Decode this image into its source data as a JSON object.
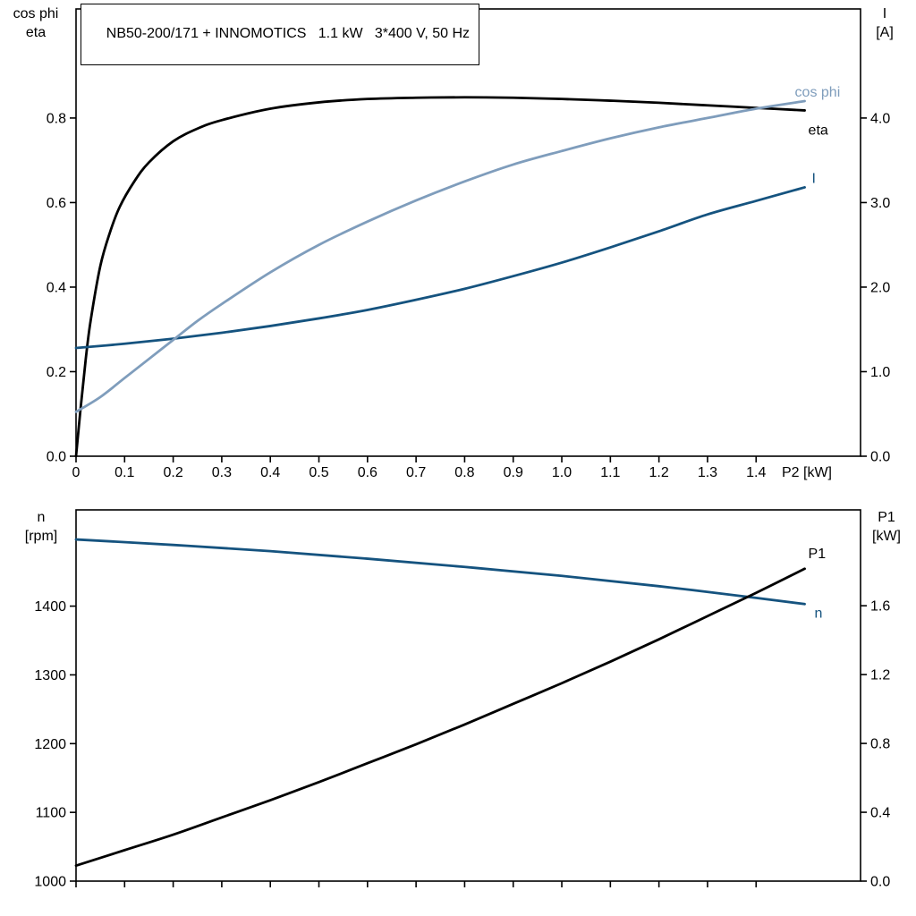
{
  "header": {
    "title_box": "NB50-200/171 + INNOMOTICS   1.1 kW   3*400 V, 50 Hz"
  },
  "colors": {
    "frame": "#000000",
    "background": "#ffffff",
    "eta": "#000000",
    "cos_phi": "#7f9dbc",
    "current": "#15537f",
    "speed": "#15537f",
    "p1": "#000000"
  },
  "chart_data": [
    {
      "name": "motor-performance",
      "type": "line",
      "x_axis": {
        "label": "P2 [kW]",
        "range": [
          0,
          1.615
        ],
        "ticks": [
          0,
          0.1,
          0.2,
          0.3,
          0.4,
          0.5,
          0.6,
          0.7,
          0.8,
          0.9,
          1.0,
          1.1,
          1.2,
          1.3,
          1.4
        ],
        "tick_labels": [
          "0",
          "0.1",
          "0.2",
          "0.3",
          "0.4",
          "0.5",
          "0.6",
          "0.7",
          "0.8",
          "0.9",
          "1.0",
          "1.1",
          "1.2",
          "1.3",
          "1.4"
        ],
        "show_tick_labels": true
      },
      "left_axis": {
        "title_lines": [
          "cos phi",
          "eta"
        ],
        "range": [
          0,
          1.058
        ],
        "ticks": [
          0,
          0.2,
          0.4,
          0.6,
          0.8
        ],
        "tick_labels": [
          "0.0",
          "0.2",
          "0.4",
          "0.6",
          "0.8"
        ]
      },
      "right_axis": {
        "title_lines": [
          "I",
          "[A]"
        ],
        "range": [
          0,
          5.29
        ],
        "ticks": [
          0,
          1,
          2,
          3,
          4
        ],
        "tick_labels": [
          "0.0",
          "1.0",
          "2.0",
          "3.0",
          "4.0"
        ]
      },
      "series": [
        {
          "name": "eta",
          "label": "eta",
          "axis": "left",
          "color": "#000000",
          "x": [
            0,
            0.01,
            0.02,
            0.03,
            0.05,
            0.07,
            0.09,
            0.12,
            0.15,
            0.2,
            0.25,
            0.3,
            0.4,
            0.5,
            0.6,
            0.7,
            0.8,
            0.9,
            1.0,
            1.1,
            1.2,
            1.3,
            1.4,
            1.5
          ],
          "y": [
            0,
            0.12,
            0.23,
            0.32,
            0.45,
            0.53,
            0.59,
            0.65,
            0.695,
            0.745,
            0.775,
            0.795,
            0.822,
            0.837,
            0.845,
            0.848,
            0.849,
            0.848,
            0.845,
            0.841,
            0.836,
            0.83,
            0.824,
            0.818
          ]
        },
        {
          "name": "current",
          "label": "I",
          "axis": "right",
          "color": "#15537f",
          "x": [
            0,
            0.1,
            0.2,
            0.3,
            0.4,
            0.5,
            0.6,
            0.7,
            0.8,
            0.9,
            1.0,
            1.1,
            1.2,
            1.3,
            1.4,
            1.5
          ],
          "y": [
            1.28,
            1.33,
            1.39,
            1.46,
            1.54,
            1.63,
            1.73,
            1.85,
            1.98,
            2.13,
            2.29,
            2.47,
            2.66,
            2.86,
            3.02,
            3.18
          ]
        },
        {
          "name": "cos_phi",
          "label": "cos phi",
          "axis": "left",
          "color": "#7f9dbc",
          "x": [
            0,
            0.05,
            0.1,
            0.15,
            0.2,
            0.25,
            0.3,
            0.4,
            0.5,
            0.6,
            0.7,
            0.8,
            0.9,
            1.0,
            1.1,
            1.2,
            1.3,
            1.4,
            1.5
          ],
          "y": [
            0.105,
            0.14,
            0.185,
            0.23,
            0.275,
            0.32,
            0.36,
            0.435,
            0.5,
            0.555,
            0.605,
            0.65,
            0.69,
            0.722,
            0.752,
            0.778,
            0.8,
            0.822,
            0.84
          ]
        }
      ]
    },
    {
      "name": "speed-and-input-power",
      "type": "line",
      "x_axis": {
        "label": "",
        "range": [
          0,
          1.615
        ],
        "ticks": [
          0,
          0.1,
          0.2,
          0.3,
          0.4,
          0.5,
          0.6,
          0.7,
          0.8,
          0.9,
          1.0,
          1.1,
          1.2,
          1.3,
          1.4
        ],
        "tick_labels": [],
        "show_tick_labels": false
      },
      "left_axis": {
        "title_lines": [
          "n",
          "[rpm]"
        ],
        "range": [
          1000,
          1540
        ],
        "ticks": [
          1000,
          1100,
          1200,
          1300,
          1400
        ],
        "tick_labels": [
          "1000",
          "1100",
          "1200",
          "1300",
          "1400"
        ]
      },
      "right_axis": {
        "title_lines": [
          "P1",
          "[kW]"
        ],
        "range": [
          0,
          2.157
        ],
        "ticks": [
          0,
          0.4,
          0.8,
          1.2,
          1.6
        ],
        "tick_labels": [
          "0.0",
          "0.4",
          "0.8",
          "1.2",
          "1.6"
        ]
      },
      "series": [
        {
          "name": "speed",
          "label": "n",
          "axis": "left",
          "color": "#15537f",
          "x": [
            0,
            0.2,
            0.4,
            0.6,
            0.8,
            1.0,
            1.2,
            1.4,
            1.5
          ],
          "y": [
            1497,
            1489,
            1480,
            1469,
            1457,
            1444,
            1429,
            1412,
            1403
          ]
        },
        {
          "name": "p1",
          "label": "P1",
          "axis": "right",
          "color": "#000000",
          "x": [
            0,
            0.1,
            0.2,
            0.3,
            0.4,
            0.5,
            0.6,
            0.7,
            0.8,
            0.9,
            1.0,
            1.1,
            1.2,
            1.3,
            1.4,
            1.5
          ],
          "y": [
            0.09,
            0.18,
            0.27,
            0.37,
            0.47,
            0.575,
            0.685,
            0.795,
            0.91,
            1.03,
            1.15,
            1.275,
            1.405,
            1.54,
            1.675,
            1.815
          ]
        }
      ]
    }
  ]
}
